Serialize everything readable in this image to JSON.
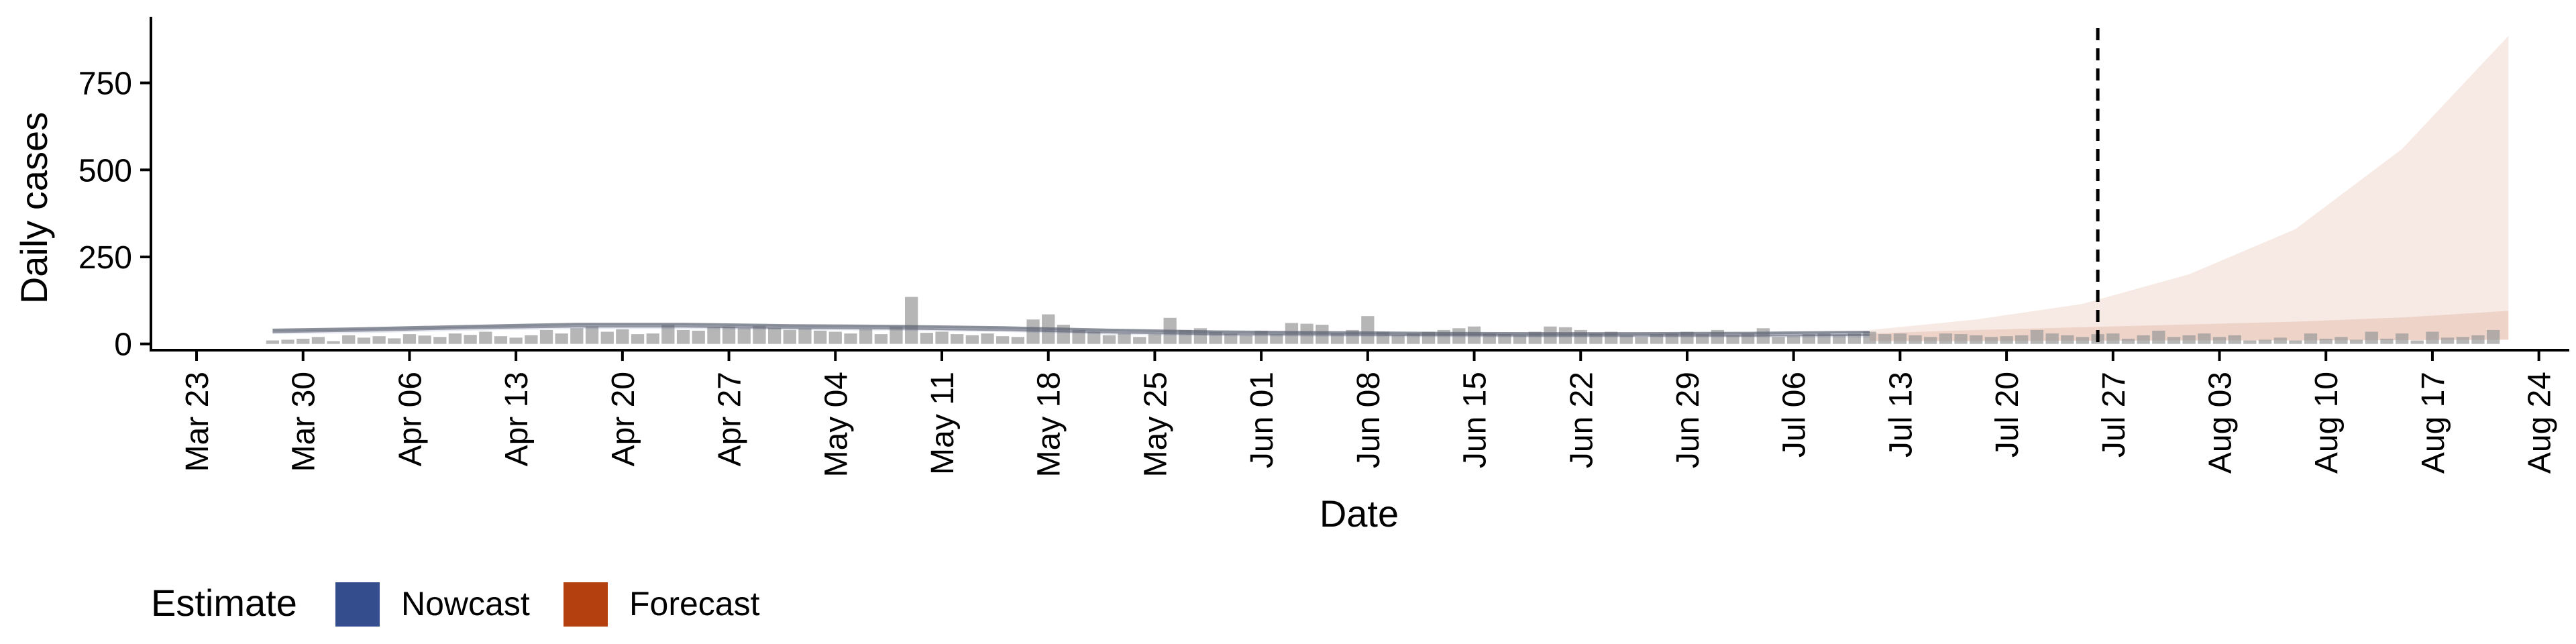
{
  "chart_data": {
    "type": "bar",
    "xlabel": "Date",
    "ylabel": "Daily cases",
    "x_range": [
      "2020-03-20",
      "2020-08-26"
    ],
    "ylim": [
      -18,
      940
    ],
    "y_ticks": [
      0,
      250,
      500,
      750
    ],
    "x_ticks": [
      "2020-03-23",
      "2020-03-30",
      "2020-04-06",
      "2020-04-13",
      "2020-04-20",
      "2020-04-27",
      "2020-05-04",
      "2020-05-11",
      "2020-05-18",
      "2020-05-25",
      "2020-06-01",
      "2020-06-08",
      "2020-06-15",
      "2020-06-22",
      "2020-06-29",
      "2020-07-06",
      "2020-07-13",
      "2020-07-20",
      "2020-07-27",
      "2020-08-03",
      "2020-08-10",
      "2020-08-17",
      "2020-08-24"
    ],
    "x_tick_labels": [
      "Mar 23",
      "Mar 30",
      "Apr 06",
      "Apr 13",
      "Apr 20",
      "Apr 27",
      "May 04",
      "May 11",
      "May 18",
      "May 25",
      "Jun 01",
      "Jun 08",
      "Jun 15",
      "Jun 22",
      "Jun 29",
      "Jul 06",
      "Jul 13",
      "Jul 20",
      "Jul 27",
      "Aug 03",
      "Aug 10",
      "Aug 17",
      "Aug 24"
    ],
    "grid": false,
    "legend": {
      "title": "Estimate",
      "position": "bottom-left",
      "entries": [
        {
          "label": "Nowcast",
          "color": "#344d8c"
        },
        {
          "label": "Forecast",
          "color": "#b5400f"
        }
      ]
    },
    "forecast_start": "2020-07-26",
    "reported_cases": {
      "start_date": "2020-03-28",
      "values": [
        10,
        12,
        15,
        20,
        8,
        25,
        18,
        22,
        16,
        28,
        24,
        20,
        30,
        26,
        35,
        22,
        18,
        25,
        40,
        30,
        45,
        50,
        35,
        42,
        28,
        30,
        55,
        40,
        38,
        48,
        50,
        45,
        52,
        46,
        40,
        44,
        38,
        35,
        30,
        42,
        28,
        50,
        135,
        32,
        35,
        28,
        25,
        30,
        22,
        20,
        70,
        85,
        55,
        40,
        35,
        25,
        30,
        20,
        28,
        75,
        40,
        45,
        35,
        30,
        25,
        38,
        28,
        60,
        58,
        55,
        30,
        40,
        80,
        35,
        25,
        30,
        35,
        40,
        45,
        50,
        30,
        28,
        25,
        35,
        50,
        48,
        40,
        30,
        35,
        25,
        20,
        28,
        30,
        35,
        28,
        40,
        25,
        30,
        45,
        20,
        22,
        28,
        30,
        25,
        30,
        35,
        28,
        30,
        25,
        20,
        30,
        28,
        25,
        20,
        22,
        25,
        40,
        30,
        25,
        20,
        28,
        30,
        15,
        25,
        38,
        20,
        25,
        30,
        20,
        25,
        10,
        12,
        18,
        10,
        30,
        15,
        20,
        12,
        35,
        15,
        30,
        10,
        35,
        18,
        20,
        25,
        40
      ]
    },
    "series": [
      {
        "name": "Nowcast",
        "dates": [
          "2020-03-28",
          "2020-04-03",
          "2020-04-10",
          "2020-04-17",
          "2020-04-24",
          "2020-05-01",
          "2020-05-08",
          "2020-05-15",
          "2020-05-22",
          "2020-05-29",
          "2020-06-05",
          "2020-06-12",
          "2020-06-19",
          "2020-06-26",
          "2020-07-03",
          "2020-07-11"
        ],
        "median": [
          34,
          38,
          45,
          50,
          50,
          46,
          44,
          40,
          33,
          28,
          27,
          25,
          24,
          24,
          24,
          26
        ],
        "upper": [
          40,
          44,
          51,
          57,
          57,
          53,
          51,
          47,
          40,
          35,
          33,
          31,
          30,
          30,
          31,
          34
        ],
        "lower": [
          28,
          31,
          38,
          43,
          43,
          40,
          38,
          34,
          27,
          22,
          21,
          19,
          18,
          18,
          18,
          18
        ]
      },
      {
        "name": "Forecast",
        "dates": [
          "2020-07-11",
          "2020-07-18",
          "2020-07-25",
          "2020-08-01",
          "2020-08-08",
          "2020-08-15",
          "2020-08-22"
        ],
        "median": [
          22,
          26,
          30,
          36,
          45,
          60,
          85
        ],
        "upper": [
          40,
          70,
          115,
          200,
          330,
          560,
          885
        ],
        "lower": [
          8,
          8,
          9,
          10,
          10,
          11,
          12
        ],
        "mid_upper": [
          30,
          40,
          48,
          56,
          64,
          76,
          95
        ]
      }
    ]
  }
}
